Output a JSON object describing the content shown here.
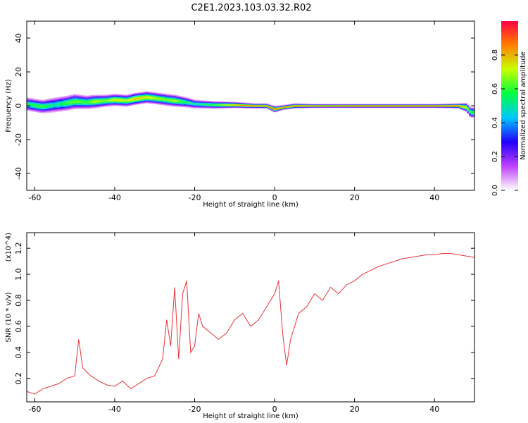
{
  "figure_title": "C2E1.2023.103.03.32.R02",
  "chart_data": [
    {
      "type": "heatmap",
      "xlabel": "Height of straight line (km)",
      "ylabel": "Frequency (Hz)",
      "xlim": [
        -62,
        50
      ],
      "ylim": [
        -50,
        50
      ],
      "xticks": [
        -60,
        -40,
        -20,
        0,
        20,
        40
      ],
      "yticks": [
        -40,
        -20,
        0,
        20,
        40
      ],
      "colorbar": {
        "label": "Normalized spectral amplitude",
        "range": [
          0,
          1
        ],
        "ticks": [
          0.0,
          0.2,
          0.4,
          0.6,
          0.8
        ],
        "colors": [
          "#ffffff",
          "#c040ff",
          "#2000ff",
          "#00c8ff",
          "#00ff40",
          "#c8ff00",
          "#ff8000",
          "#ff0040"
        ]
      },
      "ridge": {
        "x": [
          -62,
          -58,
          -55,
          -52,
          -50,
          -47,
          -45,
          -42,
          -40,
          -37,
          -35,
          -32,
          -30,
          -27,
          -25,
          -22,
          -20,
          -15,
          -10,
          -5,
          -2,
          0,
          2,
          5,
          10,
          20,
          30,
          40,
          46,
          48,
          49
        ],
        "y": [
          1.0,
          -0.5,
          0.5,
          1.5,
          2.5,
          2.0,
          2.5,
          3.0,
          3.5,
          3.0,
          4.0,
          5.0,
          4.5,
          3.5,
          3.0,
          2.0,
          1.0,
          0.5,
          0.5,
          0.0,
          0.0,
          -2.0,
          -1.0,
          0.0,
          0.0,
          0.0,
          0.0,
          0.0,
          0.0,
          -1.0,
          -4.0
        ],
        "amplitude": [
          0.55,
          0.6,
          0.5,
          0.6,
          0.65,
          0.6,
          0.7,
          0.65,
          0.75,
          0.7,
          0.8,
          0.75,
          0.7,
          0.65,
          0.7,
          0.55,
          0.5,
          0.6,
          0.8,
          0.9,
          0.85,
          0.9,
          0.85,
          0.9,
          0.9,
          0.95,
          0.95,
          0.95,
          0.9,
          0.7,
          0.6
        ],
        "half_width": [
          4.5,
          4.5,
          5.0,
          5.0,
          5.0,
          4.5,
          4.5,
          4.0,
          4.0,
          4.0,
          4.0,
          4.0,
          4.0,
          4.0,
          4.0,
          3.5,
          3.0,
          2.5,
          2.0,
          1.5,
          1.5,
          2.0,
          1.5,
          1.5,
          1.2,
          1.2,
          1.2,
          1.2,
          1.5,
          3.0,
          3.5
        ]
      }
    },
    {
      "type": "line",
      "xlabel": "Height of straight line (km)",
      "ylabel": "SNR (10 * v/v)",
      "y_multiplier": "(x10^4)",
      "xlim": [
        -62,
        50
      ],
      "ylim": [
        0.02,
        1.32
      ],
      "xticks": [
        -60,
        -40,
        -20,
        0,
        20,
        40
      ],
      "yticks": [
        0.2,
        0.4,
        0.6,
        0.8,
        1.0,
        1.2
      ],
      "series": [
        {
          "color": "#e8333a",
          "x": [
            -62,
            -60,
            -58,
            -56,
            -54,
            -52,
            -50,
            -49,
            -48,
            -46,
            -44,
            -42,
            -40,
            -38,
            -36,
            -34,
            -32,
            -30,
            -28,
            -27,
            -26,
            -25,
            -24,
            -23,
            -22,
            -21,
            -20,
            -19,
            -18,
            -16,
            -14,
            -12,
            -10,
            -8,
            -6,
            -4,
            -2,
            0,
            1,
            2,
            3,
            4,
            6,
            8,
            10,
            12,
            14,
            16,
            18,
            20,
            22,
            24,
            26,
            28,
            30,
            32,
            34,
            36,
            38,
            40,
            42,
            44,
            46,
            48,
            50
          ],
          "y": [
            0.1,
            0.08,
            0.12,
            0.14,
            0.16,
            0.2,
            0.22,
            0.5,
            0.28,
            0.22,
            0.18,
            0.15,
            0.14,
            0.18,
            0.12,
            0.16,
            0.2,
            0.22,
            0.35,
            0.65,
            0.45,
            0.9,
            0.35,
            0.85,
            0.95,
            0.4,
            0.45,
            0.7,
            0.6,
            0.55,
            0.5,
            0.55,
            0.65,
            0.7,
            0.6,
            0.65,
            0.75,
            0.85,
            0.95,
            0.55,
            0.3,
            0.5,
            0.7,
            0.75,
            0.85,
            0.8,
            0.9,
            0.85,
            0.92,
            0.95,
            1.0,
            1.03,
            1.06,
            1.08,
            1.1,
            1.12,
            1.13,
            1.14,
            1.15,
            1.15,
            1.16,
            1.16,
            1.15,
            1.14,
            1.13
          ]
        }
      ]
    }
  ]
}
